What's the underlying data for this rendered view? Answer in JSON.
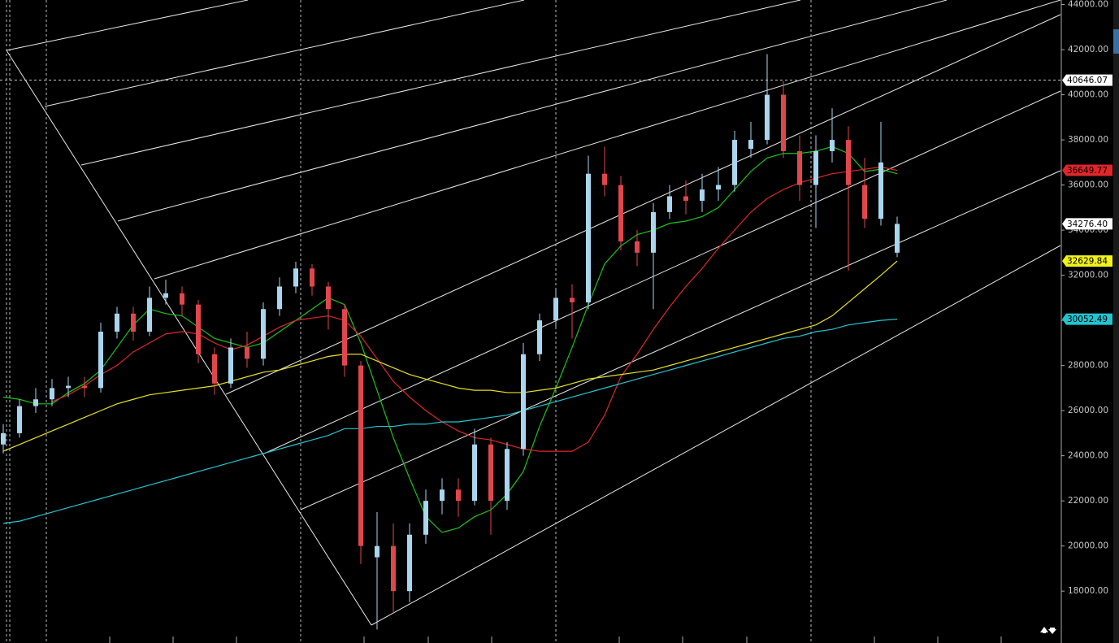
{
  "chart_data": {
    "type": "candlestick",
    "open": [
      24500,
      25000,
      26200,
      26500,
      27000,
      27100,
      27000,
      29500,
      30300,
      29500,
      31000,
      31200,
      30700,
      28500,
      27200,
      28800,
      28300,
      30500,
      31500,
      32300,
      31500,
      30500,
      28000,
      19500,
      20000,
      18000,
      20500,
      22000,
      22500,
      22000,
      24500,
      22000,
      24300,
      28500,
      30000,
      31000,
      30800,
      36500,
      36000,
      33500,
      33000,
      34800,
      35500,
      35300,
      35800,
      36000,
      37600,
      38000,
      40000,
      37500,
      36000,
      37500,
      38000,
      36000,
      34500,
      33000
    ],
    "high": [
      25400,
      26500,
      27000,
      27400,
      27500,
      27500,
      29900,
      30600,
      30600,
      31500,
      31800,
      31500,
      30900,
      28800,
      29200,
      29500,
      30800,
      31900,
      32600,
      32500,
      31700,
      30700,
      28200,
      21500,
      21000,
      21000,
      22500,
      23000,
      23000,
      25200,
      24800,
      24600,
      29000,
      30300,
      31400,
      31600,
      37300,
      37700,
      36400,
      34000,
      35200,
      36000,
      36200,
      36500,
      36800,
      38400,
      38800,
      41800,
      40600,
      38200,
      38200,
      39400,
      38600,
      37200,
      38800,
      34600
    ],
    "low": [
      24100,
      24800,
      25900,
      26200,
      26600,
      26600,
      26800,
      29200,
      29100,
      29300,
      30700,
      30200,
      28100,
      26700,
      27000,
      27900,
      28000,
      30200,
      31200,
      31100,
      29600,
      27500,
      19200,
      16300,
      17000,
      17500,
      20100,
      21400,
      21300,
      21800,
      20500,
      21600,
      24000,
      28200,
      29700,
      29200,
      30500,
      35500,
      33100,
      32400,
      30500,
      34500,
      34700,
      34800,
      35300,
      35700,
      37200,
      37800,
      37200,
      35300,
      34100,
      37000,
      32200,
      34100,
      34200,
      32800
    ],
    "close": [
      25000,
      26200,
      26500,
      27000,
      27100,
      27000,
      29500,
      30300,
      29500,
      31000,
      31200,
      30700,
      28500,
      27200,
      28800,
      28300,
      30500,
      31500,
      32300,
      31500,
      30500,
      28000,
      20000,
      20000,
      18000,
      20500,
      22000,
      22500,
      22000,
      24500,
      22000,
      24300,
      28500,
      30000,
      31000,
      30800,
      36500,
      36000,
      33500,
      33000,
      34800,
      35500,
      35300,
      35800,
      36000,
      38000,
      38000,
      40000,
      37500,
      36000,
      37500,
      38000,
      36000,
      34500,
      37000,
      34276.4
    ],
    "up_color": "#a9d6ee",
    "down_color": "#e0474c",
    "series": [
      {
        "color": "#19c419",
        "values": [
          26600,
          26500,
          26300,
          26300,
          26800,
          27200,
          27800,
          28800,
          29800,
          30500,
          30300,
          30200,
          29700,
          29200,
          29000,
          28800,
          29000,
          29500,
          30000,
          30500,
          31000,
          30700,
          29000,
          26900,
          24800,
          23000,
          21300,
          20600,
          20800,
          21300,
          21600,
          22300,
          23300,
          25300,
          27000,
          28800,
          30700,
          32500,
          33300,
          33800,
          34000,
          34300,
          34400,
          34600,
          35000,
          35800,
          36600,
          37200,
          37400,
          37400,
          37500,
          37700,
          37400,
          36600,
          36700,
          36500
        ]
      },
      {
        "color": "#e0262a",
        "values": [
          null,
          null,
          null,
          26400,
          26700,
          27100,
          27600,
          28000,
          28600,
          29000,
          29400,
          29500,
          29400,
          29000,
          28700,
          28900,
          29300,
          29700,
          30000,
          30100,
          30200,
          30000,
          29300,
          28300,
          27300,
          26600,
          26000,
          25500,
          25100,
          24800,
          24700,
          24500,
          24300,
          24200,
          24200,
          24200,
          24600,
          25800,
          27500,
          28500,
          29600,
          30600,
          31500,
          32300,
          33200,
          34000,
          34800,
          35400,
          35800,
          36100,
          36300,
          36500,
          36600,
          36700,
          36800,
          36649.77
        ]
      },
      {
        "color": "#e6e01e",
        "values": [
          24200,
          24500,
          24800,
          25100,
          25400,
          25700,
          26000,
          26300,
          26500,
          26700,
          26800,
          26900,
          27000,
          27100,
          27300,
          27500,
          27700,
          27800,
          28000,
          28200,
          28400,
          28500,
          28500,
          28200,
          27900,
          27600,
          27400,
          27200,
          27000,
          26900,
          26900,
          26800,
          26800,
          26900,
          27000,
          27200,
          27400,
          27500,
          27600,
          27700,
          27800,
          28000,
          28200,
          28400,
          28600,
          28800,
          29000,
          29200,
          29400,
          29600,
          29800,
          30200,
          30800,
          31400,
          32000,
          32629.84
        ]
      },
      {
        "color": "#22c4d0",
        "values": [
          21000,
          21100,
          21300,
          21500,
          21700,
          21900,
          22100,
          22300,
          22500,
          22700,
          22900,
          23100,
          23300,
          23500,
          23700,
          23900,
          24100,
          24300,
          24500,
          24700,
          24900,
          25200,
          25200,
          25300,
          25300,
          25400,
          25400,
          25500,
          25500,
          25600,
          25700,
          25800,
          26000,
          26200,
          26400,
          26600,
          26800,
          27000,
          27200,
          27400,
          27600,
          27800,
          28000,
          28200,
          28400,
          28600,
          28800,
          29000,
          29200,
          29300,
          29500,
          29600,
          29800,
          29900,
          30000,
          30052.49
        ]
      }
    ],
    "ylim": [
      15700,
      44200
    ],
    "yticks": [
      {
        "value": 18000,
        "label": "18000.00"
      },
      {
        "value": 20000,
        "label": "20000.00"
      },
      {
        "value": 22000,
        "label": "22000.00"
      },
      {
        "value": 24000,
        "label": "24000.00"
      },
      {
        "value": 26000,
        "label": "26000.00"
      },
      {
        "value": 28000,
        "label": "28000.00"
      },
      {
        "value": 30000,
        "label": "30000.00"
      },
      {
        "value": 32000,
        "label": "32000.00"
      },
      {
        "value": 34000,
        "label": "34000.00"
      },
      {
        "value": 36000,
        "label": "36000.00"
      },
      {
        "value": 38000,
        "label": "38000.00"
      },
      {
        "value": 40000,
        "label": "40000.00"
      },
      {
        "value": 42000,
        "label": "42000.00"
      },
      {
        "value": 44000,
        "label": "44000.00"
      }
    ],
    "price_markers": [
      {
        "value": 40646.07,
        "label": "40646.07",
        "color": "#ffffff",
        "line": true
      },
      {
        "value": 36649.77,
        "label": "36649.77",
        "color": "#e0262a"
      },
      {
        "value": 34276.4,
        "label": "34276.40",
        "color": "#ffffff"
      },
      {
        "value": 32629.84,
        "label": "32629.84",
        "color": "#f2f21a"
      },
      {
        "value": 30052.49,
        "label": "30052.49",
        "color": "#22c4d0"
      }
    ],
    "grid": false
  }
}
